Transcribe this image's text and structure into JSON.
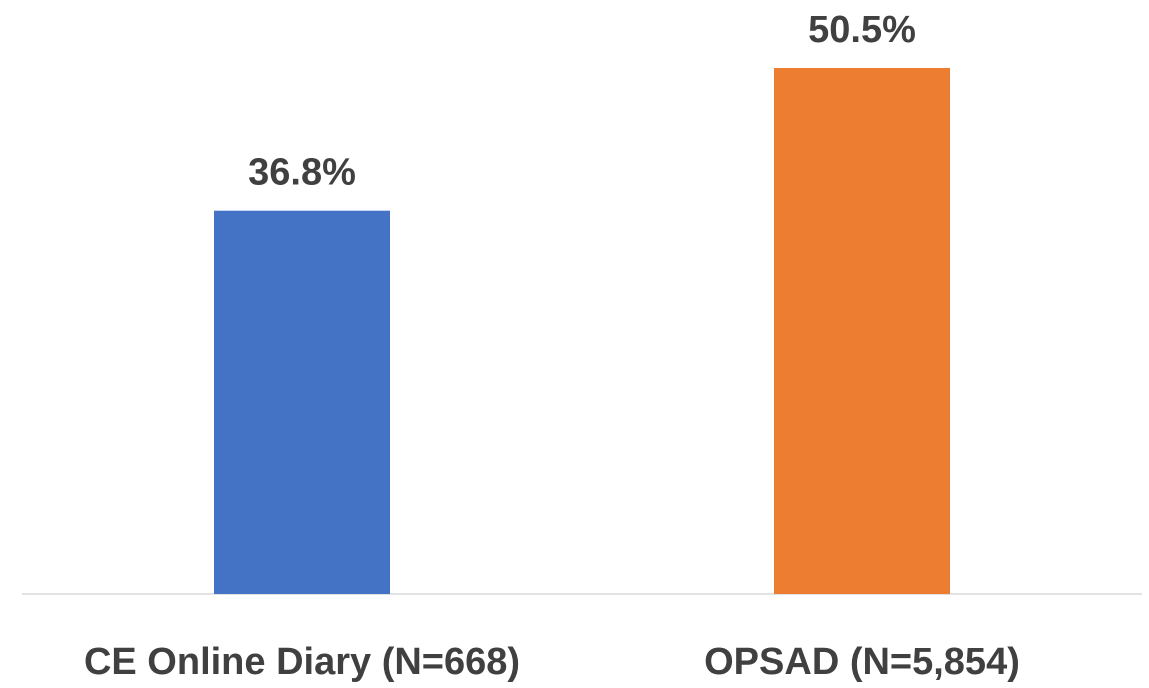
{
  "chart_data": {
    "type": "bar",
    "categories": [
      "CE Online Diary (N=668)",
      "OPSAD (N=5,854)"
    ],
    "values": [
      36.8,
      50.5
    ],
    "value_labels": [
      "36.8%",
      "50.5%"
    ],
    "colors": [
      "#4472c4",
      "#ed7d31"
    ]
  }
}
